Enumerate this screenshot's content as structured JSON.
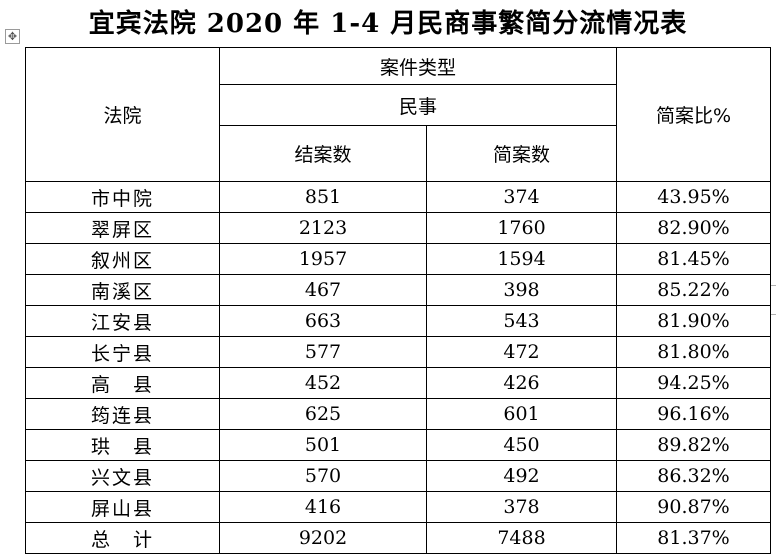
{
  "title": "宜宾法院 2020 年 1-4 月民商事繁简分流情况表",
  "table": {
    "header": {
      "court": "法院",
      "case_type": "案件类型",
      "civil": "民事",
      "closed": "结案数",
      "simple": "简案数",
      "ratio": "简案比%"
    },
    "rows": [
      {
        "court": "市中院",
        "closed": "851",
        "simple": "374",
        "ratio": "43.95%"
      },
      {
        "court": "翠屏区",
        "closed": "2123",
        "simple": "1760",
        "ratio": "82.90%"
      },
      {
        "court": "叙州区",
        "closed": "1957",
        "simple": "1594",
        "ratio": "81.45%"
      },
      {
        "court": "南溪区",
        "closed": "467",
        "simple": "398",
        "ratio": "85.22%"
      },
      {
        "court": "江安县",
        "closed": "663",
        "simple": "543",
        "ratio": "81.90%"
      },
      {
        "court": "长宁县",
        "closed": "577",
        "simple": "472",
        "ratio": "81.80%"
      },
      {
        "court": "高　县",
        "closed": "452",
        "simple": "426",
        "ratio": "94.25%"
      },
      {
        "court": "筠连县",
        "closed": "625",
        "simple": "601",
        "ratio": "96.16%"
      },
      {
        "court": "珙　县",
        "closed": "501",
        "simple": "450",
        "ratio": "89.82%"
      },
      {
        "court": "兴文县",
        "closed": "570",
        "simple": "492",
        "ratio": "86.32%"
      },
      {
        "court": "屏山县",
        "closed": "416",
        "simple": "378",
        "ratio": "90.87%"
      },
      {
        "court": "总　计",
        "closed": "9202",
        "simple": "7488",
        "ratio": "81.37%"
      }
    ]
  },
  "icons": {
    "move_handle": "move-icon"
  }
}
